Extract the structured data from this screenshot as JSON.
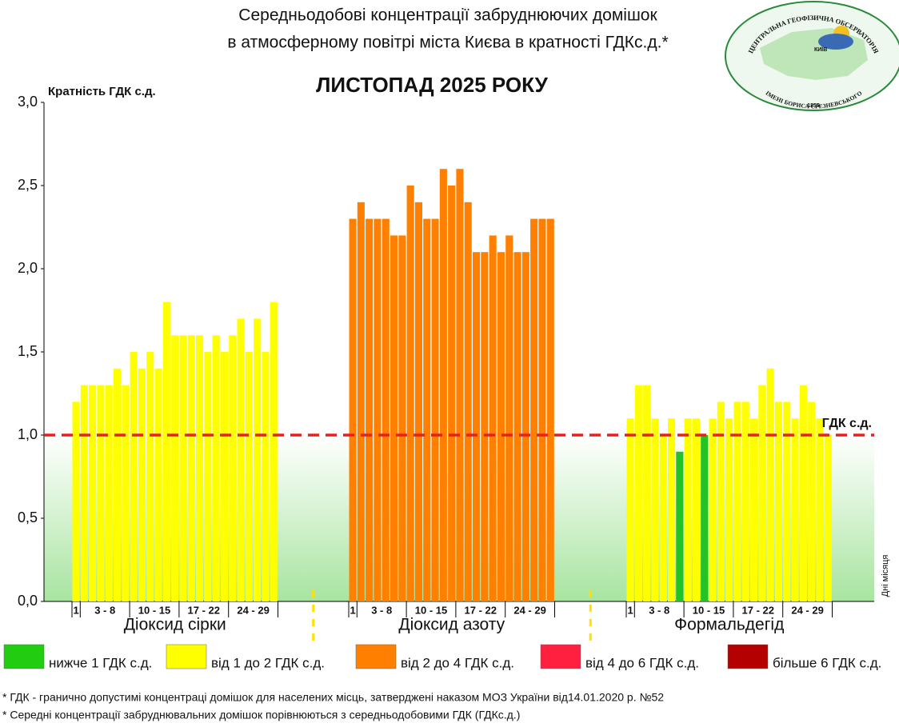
{
  "chart_data": {
    "type": "bar",
    "title": [
      "Середньодобові концентрації забруднюючих домішок",
      "в атмосферному повітрі міста Києва в кратності ГДКс.д.*"
    ],
    "subtitle": "ЛИСТОПАД 2025 РОКУ",
    "y_label": "Кратність ГДК с.д.",
    "x_label": "Дні місяця",
    "day_labels": [
      "1",
      "3 - 8",
      "10 - 15",
      "17 - 22",
      "24 - 29"
    ],
    "ylim": [
      0,
      3
    ],
    "yticks": [
      {
        "value": 0,
        "label": "0,0"
      },
      {
        "value": 0.5,
        "label": "0,5"
      },
      {
        "value": 1,
        "label": "1,0"
      },
      {
        "value": 1.5,
        "label": "1,5"
      },
      {
        "value": 2,
        "label": "2,0"
      },
      {
        "value": 2.5,
        "label": "2,5"
      },
      {
        "value": 3,
        "label": "3,0"
      }
    ],
    "reference": {
      "value": 1,
      "label": "ГДК с.д.",
      "color": "#e8201c"
    },
    "series": [
      {
        "name": "Діоксид сірки",
        "values": [
          1.2,
          1.3,
          1.3,
          1.3,
          1.3,
          1.4,
          1.3,
          1.5,
          1.4,
          1.5,
          1.4,
          1.8,
          1.6,
          1.6,
          1.6,
          1.6,
          1.5,
          1.6,
          1.5,
          1.6,
          1.7,
          1.5,
          1.7,
          1.5,
          1.8
        ],
        "colors": [
          "#ffff00",
          "#ffff00",
          "#ffff00",
          "#ffff00",
          "#ffff00",
          "#ffff00",
          "#ffff00",
          "#ffff00",
          "#ffff00",
          "#ffff00",
          "#ffff00",
          "#ffff00",
          "#ffff00",
          "#ffff00",
          "#ffff00",
          "#ffff00",
          "#ffff00",
          "#ffff00",
          "#ffff00",
          "#ffff00",
          "#ffff00",
          "#ffff00",
          "#ffff00",
          "#ffff00",
          "#ffff00"
        ]
      },
      {
        "name": "Діоксид азоту",
        "values": [
          2.3,
          2.4,
          2.3,
          2.3,
          2.3,
          2.2,
          2.2,
          2.5,
          2.4,
          2.3,
          2.3,
          2.6,
          2.5,
          2.6,
          2.4,
          2.1,
          2.1,
          2.2,
          2.1,
          2.2,
          2.1,
          2.1,
          2.3,
          2.3,
          2.3
        ],
        "colors": [
          "#ff8000",
          "#ff8000",
          "#ff8000",
          "#ff8000",
          "#ff8000",
          "#ff8000",
          "#ff8000",
          "#ff8000",
          "#ff8000",
          "#ff8000",
          "#ff8000",
          "#ff8000",
          "#ff8000",
          "#ff8000",
          "#ff8000",
          "#ff8000",
          "#ff8000",
          "#ff8000",
          "#ff8000",
          "#ff8000",
          "#ff8000",
          "#ff8000",
          "#ff8000",
          "#ff8000",
          "#ff8000"
        ]
      },
      {
        "name": "Формальдегід",
        "values": [
          1.1,
          1.3,
          1.3,
          1.1,
          1.0,
          1.1,
          0.9,
          1.1,
          1.1,
          1.0,
          1.1,
          1.2,
          1.1,
          1.2,
          1.2,
          1.1,
          1.3,
          1.4,
          1.2,
          1.2,
          1.1,
          1.3,
          1.2,
          1.1,
          1.0
        ],
        "colors": [
          "#ffff00",
          "#ffff00",
          "#ffff00",
          "#ffff00",
          "#ffff00",
          "#ffff00",
          "#22c322",
          "#ffff00",
          "#ffff00",
          "#22c322",
          "#ffff00",
          "#ffff00",
          "#ffff00",
          "#ffff00",
          "#ffff00",
          "#ffff00",
          "#ffff00",
          "#ffff00",
          "#ffff00",
          "#ffff00",
          "#ffff00",
          "#ffff00",
          "#ffff00",
          "#ffff00",
          "#ffff00"
        ]
      }
    ],
    "legend": [
      {
        "label": "нижче 1 ГДК с.д.",
        "color": "#22cc11"
      },
      {
        "label": "від 1 до 2 ГДК с.д.",
        "color": "#ffff00"
      },
      {
        "label": "від 2 до 4 ГДК с.д.",
        "color": "#ff8000"
      },
      {
        "label": "від 4 до 6 ГДК с.д.",
        "color": "#ff2040"
      },
      {
        "label": "більше 6 ГДК с.д.",
        "color": "#b40000"
      }
    ],
    "footnotes": [
      "* ГДК - гранично допустимі концентраці домішок для населених місць, затверджені наказом МОЗ України від14.01.2020 р. №52",
      "* Середні концентрації забруднювальних домішок порівнюються з середньодобовими  ГДК (ГДКс.д.)"
    ],
    "logo": {
      "top": "ЦЕНТРАЛЬНА ГЕОФІЗИЧНА ОБСЕРВАТОРІЯ",
      "city": "КИЇВ",
      "bottom": "ІМЕНІ БОРИСА СРЕЗНЕВСЬКОГО",
      "year": "1855"
    }
  }
}
